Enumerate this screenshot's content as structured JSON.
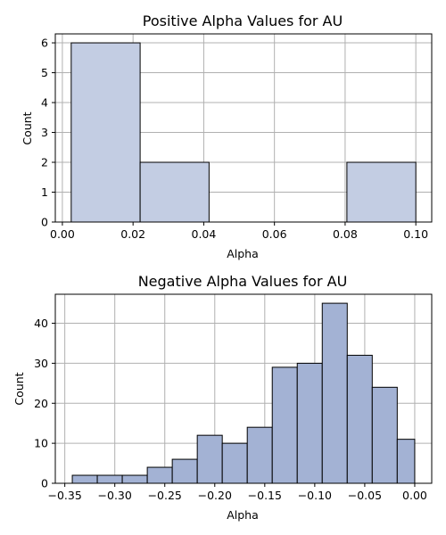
{
  "chart_data": [
    {
      "type": "bar",
      "title": "Positive Alpha Values for AU",
      "xlabel": "Alpha",
      "ylabel": "Count",
      "bin_edges": [
        0.0025,
        0.022,
        0.0415,
        0.061,
        0.0805,
        0.1
      ],
      "values": [
        6,
        2,
        0,
        0,
        2
      ],
      "xlim": [
        -0.002,
        0.1045
      ],
      "ylim": [
        0,
        6.3
      ],
      "xticks": [
        0.0,
        0.02,
        0.04,
        0.06,
        0.08,
        0.1
      ],
      "xtick_labels": [
        "0.00",
        "0.02",
        "0.04",
        "0.06",
        "0.08",
        "0.10"
      ],
      "yticks": [
        0,
        1,
        2,
        3,
        4,
        5,
        6
      ],
      "ytick_labels": [
        "0",
        "1",
        "2",
        "3",
        "4",
        "5",
        "6"
      ],
      "bar_color": "#c3cde3",
      "grid": true
    },
    {
      "type": "bar",
      "title": "Negative Alpha Values for AU",
      "xlabel": "Alpha",
      "ylabel": "Count",
      "bin_edges": [
        -0.3425,
        -0.3175,
        -0.2925,
        -0.2675,
        -0.2425,
        -0.2175,
        -0.1925,
        -0.1675,
        -0.1425,
        -0.1175,
        -0.0925,
        -0.0675,
        -0.0425,
        -0.0175,
        0.0
      ],
      "values": [
        2,
        2,
        2,
        4,
        6,
        12,
        10,
        14,
        29,
        30,
        45,
        32,
        24,
        11
      ],
      "xlim": [
        -0.3595,
        0.017
      ],
      "ylim": [
        0,
        47.25
      ],
      "xticks": [
        -0.35,
        -0.3,
        -0.25,
        -0.2,
        -0.15,
        -0.1,
        -0.05,
        0.0
      ],
      "xtick_labels": [
        "−0.35",
        "−0.30",
        "−0.25",
        "−0.20",
        "−0.15",
        "−0.10",
        "−0.05",
        "0.00"
      ],
      "yticks": [
        0,
        10,
        20,
        30,
        40
      ],
      "ytick_labels": [
        "0",
        "10",
        "20",
        "30",
        "40"
      ],
      "bar_color": "#a3b2d4",
      "grid": true
    }
  ]
}
